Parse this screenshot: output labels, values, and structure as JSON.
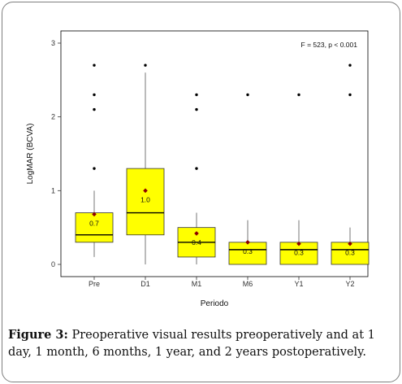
{
  "chart_data": {
    "type": "box",
    "title": "",
    "annotation": "F = 523, p < 0.001",
    "xlabel": "Periodo",
    "ylabel": "LogMAR (BCVA)",
    "ylim": [
      0,
      3
    ],
    "yticks": [
      0,
      1,
      2,
      3
    ],
    "grid": false,
    "box_color": "#ffff00",
    "mean_color": "#8b0000",
    "categories": [
      "Pre",
      "D1",
      "M1",
      "M6",
      "Y1",
      "Y2"
    ],
    "boxes": [
      {
        "label": "Pre",
        "whisker_low": 0.1,
        "q1": 0.3,
        "median": 0.4,
        "q3": 0.7,
        "whisker_high": 1.0,
        "mean": 0.68,
        "mean_label": "0.7",
        "outliers": [
          1.3,
          2.1,
          2.3,
          2.7
        ]
      },
      {
        "label": "D1",
        "whisker_low": 0.0,
        "q1": 0.4,
        "median": 0.7,
        "q3": 1.3,
        "whisker_high": 2.6,
        "mean": 1.0,
        "mean_label": "1.0",
        "outliers": [
          2.7
        ]
      },
      {
        "label": "M1",
        "whisker_low": 0.0,
        "q1": 0.1,
        "median": 0.3,
        "q3": 0.5,
        "whisker_high": 0.7,
        "mean": 0.42,
        "mean_label": "0.4",
        "outliers": [
          1.3,
          2.1,
          2.3
        ]
      },
      {
        "label": "M6",
        "whisker_low": 0.0,
        "q1": 0.0,
        "median": 0.2,
        "q3": 0.3,
        "whisker_high": 0.6,
        "mean": 0.3,
        "mean_label": "0.3",
        "outliers": [
          2.3
        ]
      },
      {
        "label": "Y1",
        "whisker_low": 0.0,
        "q1": 0.0,
        "median": 0.2,
        "q3": 0.3,
        "whisker_high": 0.6,
        "mean": 0.28,
        "mean_label": "0.3",
        "outliers": [
          2.3
        ]
      },
      {
        "label": "Y2",
        "whisker_low": 0.0,
        "q1": 0.0,
        "median": 0.2,
        "q3": 0.3,
        "whisker_high": 0.5,
        "mean": 0.28,
        "mean_label": "0.3",
        "outliers": [
          2.3,
          2.7
        ]
      }
    ]
  },
  "caption": {
    "label": "Figure 3:",
    "text": "Preoperative visual results preoperatively and at 1 day, 1 month, 6 months, 1 year, and 2 years postoperatively."
  }
}
